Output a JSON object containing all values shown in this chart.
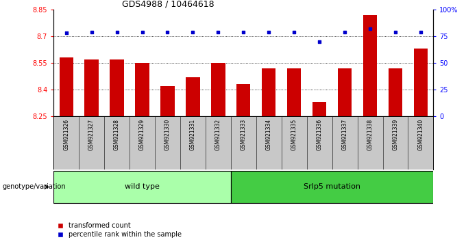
{
  "title": "GDS4988 / 10464618",
  "samples": [
    "GSM921326",
    "GSM921327",
    "GSM921328",
    "GSM921329",
    "GSM921330",
    "GSM921331",
    "GSM921332",
    "GSM921333",
    "GSM921334",
    "GSM921335",
    "GSM921336",
    "GSM921337",
    "GSM921338",
    "GSM921339",
    "GSM921340"
  ],
  "bar_values": [
    8.58,
    8.57,
    8.57,
    8.55,
    8.42,
    8.47,
    8.55,
    8.43,
    8.52,
    8.52,
    8.33,
    8.52,
    8.82,
    8.52,
    8.63
  ],
  "percentile_values": [
    78,
    79,
    79,
    79,
    79,
    79,
    79,
    79,
    79,
    79,
    70,
    79,
    82,
    79,
    79
  ],
  "bar_color": "#cc0000",
  "dot_color": "#0000cc",
  "ylim_left": [
    8.25,
    8.85
  ],
  "ylim_right": [
    0,
    100
  ],
  "yticks_left": [
    8.25,
    8.4,
    8.55,
    8.7,
    8.85
  ],
  "ytick_labels_left": [
    "8.25",
    "8.4",
    "8.55",
    "8.7",
    "8.85"
  ],
  "yticks_right": [
    0,
    25,
    50,
    75,
    100
  ],
  "ytick_labels_right": [
    "0",
    "25",
    "50",
    "75",
    "100%"
  ],
  "wild_type_count": 7,
  "wild_type_label": "wild type",
  "mutation_label": "Srlp5 mutation",
  "genotype_label": "genotype/variation",
  "legend_bar": "transformed count",
  "legend_dot": "percentile rank within the sample",
  "grid_values": [
    8.4,
    8.55,
    8.7
  ],
  "background_color": "#ffffff",
  "tick_bg_color": "#c8c8c8",
  "wt_color": "#aaffaa",
  "mut_color": "#44cc44"
}
